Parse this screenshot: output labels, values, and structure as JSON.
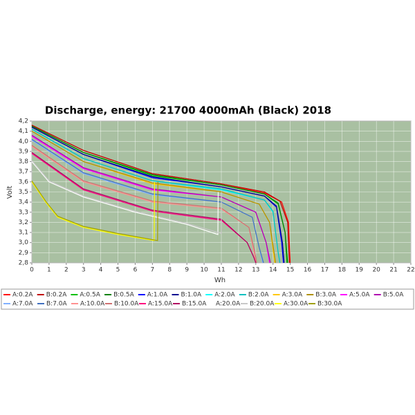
{
  "chart_data": {
    "type": "line",
    "title": "Discharge, energy:  21700 4000mAh (Black) 2018",
    "x_label": "Wh",
    "y_label": "Volt",
    "xlim": [
      0,
      22
    ],
    "xticks": [
      0,
      1,
      2,
      3,
      4,
      5,
      6,
      7,
      8,
      9,
      10,
      11,
      12,
      13,
      14,
      15,
      16,
      17,
      18,
      19,
      20,
      21,
      22
    ],
    "ylim": [
      2.8,
      4.2
    ],
    "yticks": [
      {
        "value": 2.8,
        "label": "2,8"
      },
      {
        "value": 2.9,
        "label": "2,9"
      },
      {
        "value": 3.0,
        "label": "3,0"
      },
      {
        "value": 3.1,
        "label": "3,1"
      },
      {
        "value": 3.2,
        "label": "3,2"
      },
      {
        "value": 3.3,
        "label": "3,3"
      },
      {
        "value": 3.4,
        "label": "3,4"
      },
      {
        "value": 3.5,
        "label": "3,5"
      },
      {
        "value": 3.6,
        "label": "3,6"
      },
      {
        "value": 3.7,
        "label": "3,7"
      },
      {
        "value": 3.8,
        "label": "3,8"
      },
      {
        "value": 3.9,
        "label": "3,9"
      },
      {
        "value": 4.0,
        "label": "4,0"
      },
      {
        "value": 4.1,
        "label": "4,1"
      },
      {
        "value": 4.2,
        "label": "4,2"
      }
    ],
    "grid": true,
    "background": "#a9c0a2",
    "series": [
      {
        "name": "A:0.2A",
        "color": "#ff0000",
        "x": [
          0,
          3,
          7,
          11,
          13.5,
          14.5,
          14.9,
          15.0
        ],
        "values": [
          4.16,
          3.91,
          3.68,
          3.58,
          3.49,
          3.4,
          3.2,
          2.8
        ]
      },
      {
        "name": "B:0.2A",
        "color": "#c00000",
        "x": [
          0,
          3,
          7,
          11,
          13.5,
          14.4,
          14.85,
          14.95
        ],
        "values": [
          4.16,
          3.91,
          3.68,
          3.58,
          3.5,
          3.41,
          3.2,
          2.8
        ]
      },
      {
        "name": "A:0.5A",
        "color": "#00c000",
        "x": [
          0,
          3,
          7,
          11,
          13.5,
          14.3,
          14.7,
          14.8
        ],
        "values": [
          4.15,
          3.89,
          3.66,
          3.57,
          3.48,
          3.38,
          3.1,
          2.8
        ]
      },
      {
        "name": "B:0.5A",
        "color": "#008000",
        "x": [
          0,
          3,
          7,
          11,
          13.5,
          14.3,
          14.7,
          14.85
        ],
        "values": [
          4.15,
          3.89,
          3.67,
          3.57,
          3.48,
          3.39,
          3.1,
          2.8
        ]
      },
      {
        "name": "A:1.0A",
        "color": "#0000ff",
        "x": [
          0,
          3,
          7,
          11,
          13.5,
          14.2,
          14.5,
          14.6
        ],
        "values": [
          4.14,
          3.87,
          3.64,
          3.55,
          3.46,
          3.35,
          3.0,
          2.8
        ]
      },
      {
        "name": "B:1.0A",
        "color": "#000090",
        "x": [
          0,
          3,
          7,
          11,
          13.5,
          14.2,
          14.55,
          14.65
        ],
        "values": [
          4.14,
          3.87,
          3.65,
          3.55,
          3.46,
          3.36,
          3.0,
          2.8
        ]
      },
      {
        "name": "A:2.0A",
        "color": "#00ffff",
        "x": [
          0,
          3,
          7,
          11,
          13.5,
          14.0,
          14.3,
          14.4
        ],
        "values": [
          4.12,
          3.83,
          3.61,
          3.52,
          3.42,
          3.3,
          2.9,
          2.8
        ]
      },
      {
        "name": "B:2.0A",
        "color": "#00c0c0",
        "x": [
          0,
          3,
          7,
          11,
          13.5,
          14.0,
          14.3,
          14.4
        ],
        "values": [
          4.12,
          3.83,
          3.61,
          3.53,
          3.42,
          3.31,
          2.9,
          2.8
        ]
      },
      {
        "name": "A:3.0A",
        "color": "#ffc800",
        "x": [
          0,
          3,
          7,
          11,
          13.2,
          13.8,
          14.1
        ],
        "values": [
          4.1,
          3.8,
          3.58,
          3.5,
          3.38,
          3.2,
          2.8
        ]
      },
      {
        "name": "B:3.0A",
        "color": "#b09000",
        "x": [
          0,
          3,
          7,
          11,
          13.2,
          13.8,
          14.15
        ],
        "values": [
          4.1,
          3.8,
          3.59,
          3.5,
          3.38,
          3.2,
          2.8
        ]
      },
      {
        "name": "A:5.0A",
        "color": "#ff00ff",
        "x": [
          0,
          3,
          7,
          11,
          13.0,
          13.6,
          13.8
        ],
        "values": [
          4.05,
          3.73,
          3.52,
          3.45,
          3.3,
          3.0,
          2.8
        ]
      },
      {
        "name": "B:5.0A",
        "color": "#b000b0",
        "x": [
          0,
          3,
          7,
          11,
          13.0,
          13.6,
          13.85
        ],
        "values": [
          4.06,
          3.74,
          3.53,
          3.45,
          3.3,
          3.0,
          2.8
        ]
      },
      {
        "name": "A:7.0A",
        "color": "#80b0ff",
        "x": [
          0,
          3,
          7,
          11,
          12.8,
          13.2,
          13.4
        ],
        "values": [
          4.01,
          3.68,
          3.47,
          3.4,
          3.25,
          2.95,
          2.8
        ]
      },
      {
        "name": "B:7.0A",
        "color": "#4070c0",
        "x": [
          0,
          3,
          7,
          11,
          12.8,
          13.2,
          13.45
        ],
        "values": [
          4.02,
          3.69,
          3.48,
          3.4,
          3.25,
          2.95,
          2.8
        ]
      },
      {
        "name": "A:10.0A",
        "color": "#ff9090",
        "x": [
          0,
          3,
          7,
          11,
          12.6,
          12.9,
          13.0
        ],
        "values": [
          3.95,
          3.6,
          3.4,
          3.33,
          3.15,
          2.9,
          2.8
        ]
      },
      {
        "name": "B:10.0A",
        "color": "#d07070",
        "x": [
          0,
          3,
          7,
          11,
          12.6,
          12.95,
          13.05
        ],
        "values": [
          3.96,
          3.61,
          3.41,
          3.34,
          3.15,
          2.9,
          2.8
        ]
      },
      {
        "name": "A:15.0A",
        "color": "#ff0080",
        "x": [
          0,
          3,
          7,
          11,
          12.5,
          12.9,
          13.0
        ],
        "values": [
          3.88,
          3.52,
          3.31,
          3.22,
          3.0,
          2.85,
          2.8
        ]
      },
      {
        "name": "B:15.0A",
        "color": "#b00060",
        "x": [
          0,
          3,
          7,
          11,
          12.5,
          12.9,
          13.0
        ],
        "values": [
          3.89,
          3.53,
          3.32,
          3.23,
          3.0,
          2.85,
          2.8
        ]
      },
      {
        "name": "A:20.0A",
        "color": "#ffffff",
        "x": [
          0,
          1,
          3,
          6,
          9,
          10.8,
          10.82
        ],
        "values": [
          3.8,
          3.6,
          3.45,
          3.3,
          3.18,
          3.08,
          3.5
        ]
      },
      {
        "name": "B:20.0A",
        "color": "#c8c8c8",
        "x": [
          0,
          1,
          3,
          6,
          9,
          11.0,
          11.02
        ],
        "values": [
          3.81,
          3.61,
          3.46,
          3.31,
          3.19,
          3.09,
          3.5
        ]
      },
      {
        "name": "A:30.0A",
        "color": "#ffff00",
        "x": [
          0,
          0.8,
          1.5,
          3,
          5,
          7.1,
          7.12
        ],
        "values": [
          3.6,
          3.4,
          3.25,
          3.15,
          3.08,
          3.02,
          3.6
        ]
      },
      {
        "name": "B:30.0A",
        "color": "#a0a000",
        "x": [
          0,
          0.8,
          1.5,
          3,
          5,
          7.3,
          7.32
        ],
        "values": [
          3.61,
          3.41,
          3.26,
          3.16,
          3.09,
          3.02,
          3.6
        ]
      }
    ]
  }
}
